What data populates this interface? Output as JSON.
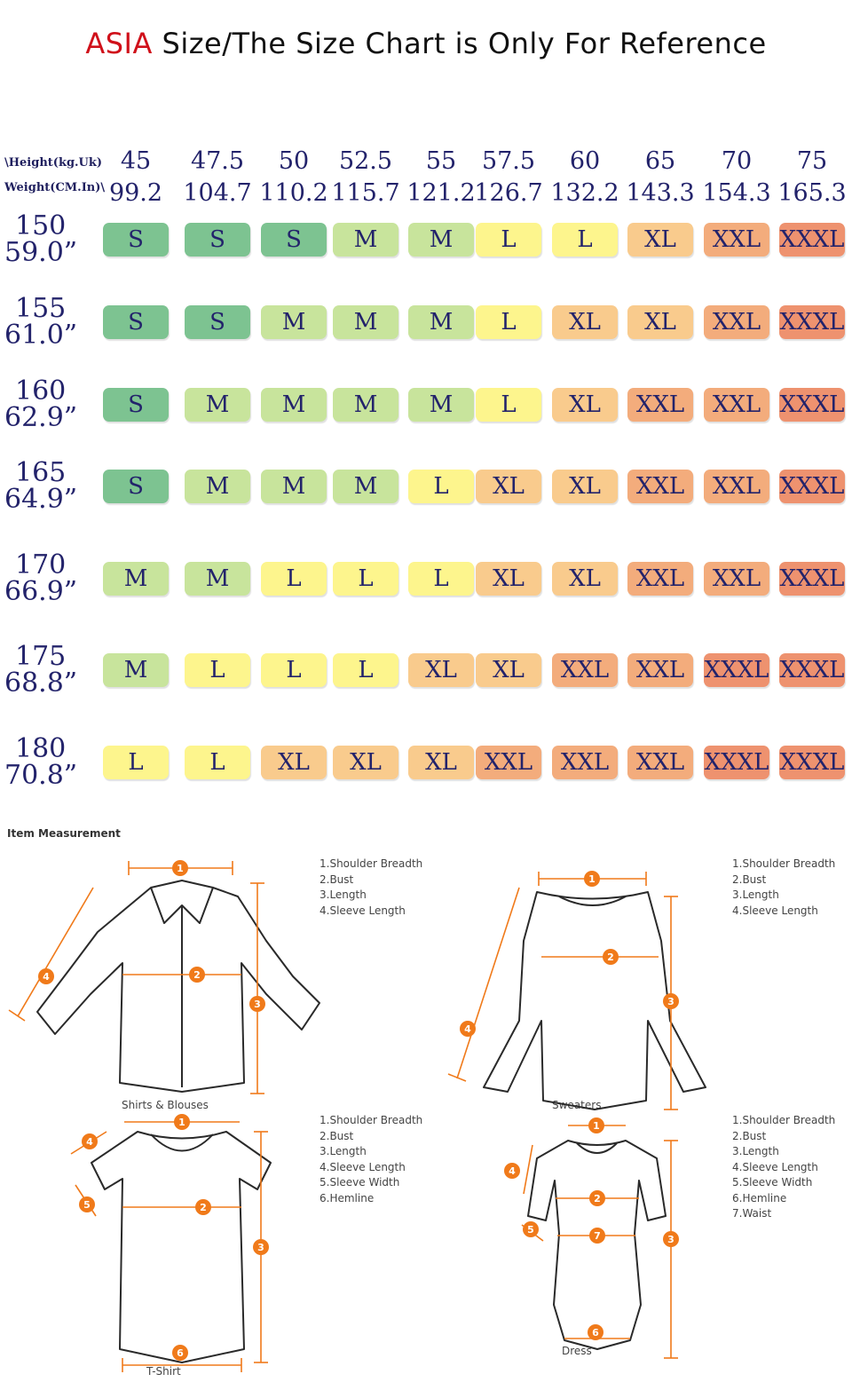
{
  "title": {
    "highlight": "ASIA",
    "rest": " Size/The Size Chart is Only For Reference"
  },
  "header_labels": {
    "height": "\\Height(kg.Uk)",
    "weight": "Weight(CM.In)\\"
  },
  "weights_kg": [
    "45",
    "47.5",
    "50",
    "52.5",
    "55",
    "57.5",
    "60",
    "65",
    "70",
    "75"
  ],
  "weights_lb": [
    "99.2",
    "104.7",
    "110.2",
    "115.7",
    "121.2",
    "126.7",
    "132.2",
    "143.3",
    "154.3",
    "165.3"
  ],
  "rows": [
    {
      "cm": "150",
      "in": "59.0”",
      "sizes": [
        "S",
        "S",
        "S",
        "M",
        "M",
        "L",
        "L",
        "XL",
        "XXL",
        "XXXL"
      ]
    },
    {
      "cm": "155",
      "in": "61.0”",
      "sizes": [
        "S",
        "S",
        "M",
        "M",
        "M",
        "L",
        "XL",
        "XL",
        "XXL",
        "XXXL"
      ]
    },
    {
      "cm": "160",
      "in": "62.9”",
      "sizes": [
        "S",
        "M",
        "M",
        "M",
        "M",
        "L",
        "XL",
        "XXL",
        "XXL",
        "XXXL"
      ]
    },
    {
      "cm": "165",
      "in": "64.9”",
      "sizes": [
        "S",
        "M",
        "M",
        "M",
        "L",
        "XL",
        "XL",
        "XXL",
        "XXL",
        "XXXL"
      ]
    },
    {
      "cm": "170",
      "in": "66.9”",
      "sizes": [
        "M",
        "M",
        "L",
        "L",
        "L",
        "XL",
        "XL",
        "XXL",
        "XXL",
        "XXXL"
      ]
    },
    {
      "cm": "175",
      "in": "68.8”",
      "sizes": [
        "M",
        "L",
        "L",
        "L",
        "XL",
        "XL",
        "XXL",
        "XXL",
        "XXXL",
        "XXXL"
      ]
    },
    {
      "cm": "180",
      "in": "70.8”",
      "sizes": [
        "L",
        "L",
        "XL",
        "XL",
        "XL",
        "XXL",
        "XXL",
        "XXL",
        "XXXL",
        "XXXL"
      ]
    }
  ],
  "colors": {
    "S": "#7dc391",
    "M": "#c8e49c",
    "L": "#fdf58d",
    "XL": "#f9cb8d",
    "XXL": "#f3ac7c",
    "XXXL": "#ee926f",
    "accent_title": "#d0101a",
    "text": "#23236b",
    "measure": "#f07a1a"
  },
  "measurement": {
    "heading": "Item Measurement",
    "garments": [
      {
        "label": "Shirts & Blouses",
        "legend": [
          "1.Shoulder Breadth",
          "2.Bust",
          "3.Length",
          "4.Sleeve Length"
        ]
      },
      {
        "label": "Sweaters",
        "legend": [
          "1.Shoulder Breadth",
          "2.Bust",
          "3.Length",
          "4.Sleeve Length"
        ]
      },
      {
        "label": "T-Shirt",
        "legend": [
          "1.Shoulder Breadth",
          "2.Bust",
          "3.Length",
          "4.Sleeve Length",
          "5.Sleeve Width",
          "6.Hemline"
        ]
      },
      {
        "label": "Dress",
        "legend": [
          "1.Shoulder Breadth",
          "2.Bust",
          "3.Length",
          "4.Sleeve Length",
          "5.Sleeve Width",
          "6.Hemline",
          "7.Waist"
        ]
      }
    ]
  }
}
